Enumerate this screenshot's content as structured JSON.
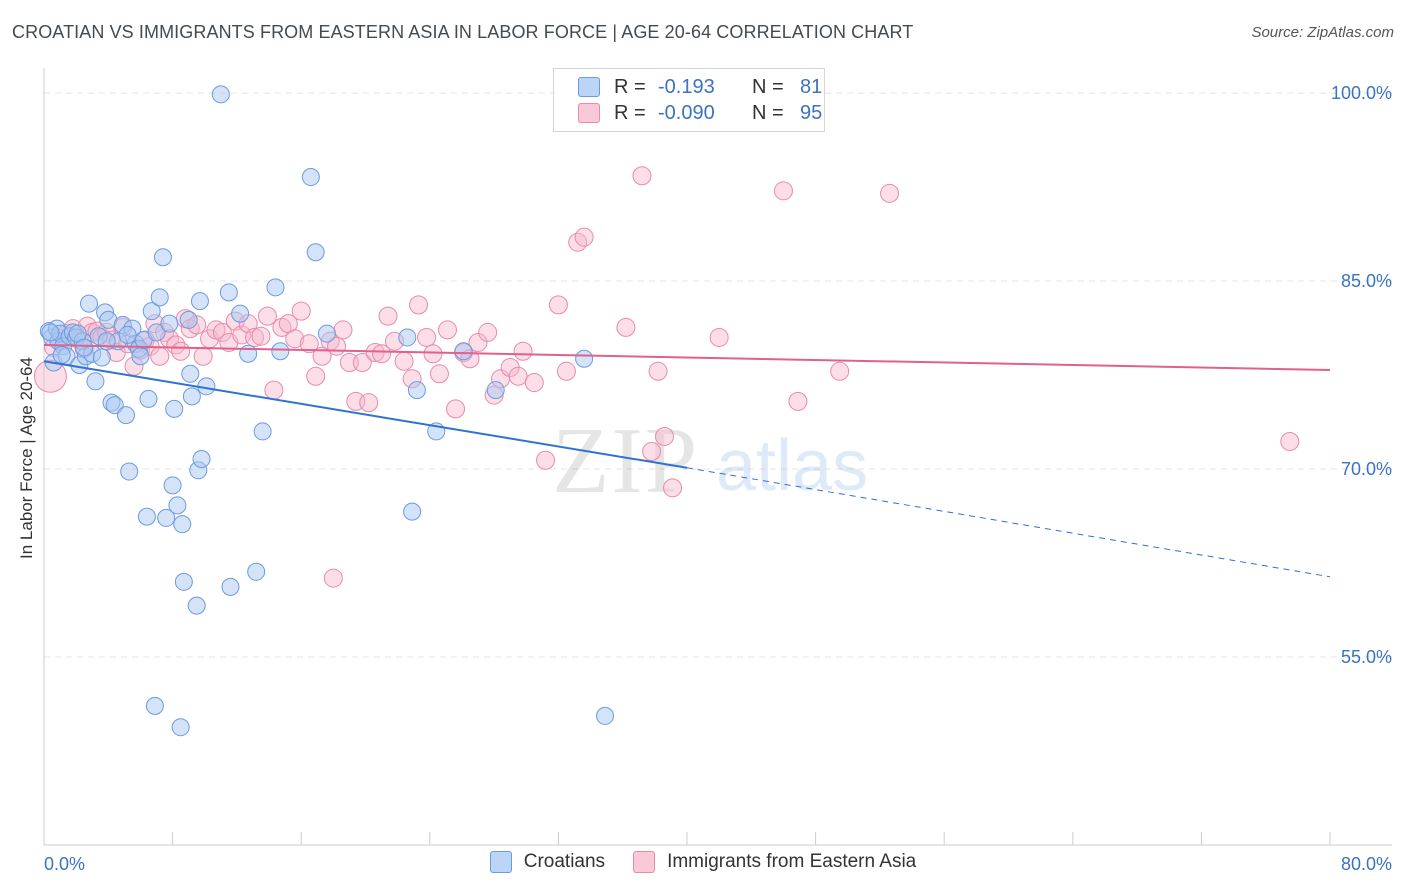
{
  "title": "CROATIAN VS IMMIGRANTS FROM EASTERN ASIA IN LABOR FORCE | AGE 20-64 CORRELATION CHART",
  "source": "Source: ZipAtlas.com",
  "watermark": {
    "zip": "ZIP",
    "atlas": "atlas"
  },
  "legend_top": {
    "rows": [
      {
        "r_label": "R =",
        "r_value": "-0.193",
        "n_label": "N =",
        "n_value": "81"
      },
      {
        "r_label": "R =",
        "r_value": "-0.090",
        "n_label": "N =",
        "n_value": "95"
      }
    ]
  },
  "legend_bottom": {
    "items": [
      "Croatians",
      "Immigrants from Eastern Asia"
    ]
  },
  "colors": {
    "blue_fill": "#a9c8f2",
    "blue_stroke": "#6b9be0",
    "blue_line": "#2f72d0",
    "pink_fill": "#f6b6cb",
    "pink_stroke": "#e98aaa",
    "pink_line": "#e0608e",
    "tick_text": "#3a72c4",
    "grid": "#e3e3e3"
  },
  "chart_data": {
    "type": "scatter",
    "xlabel": "",
    "ylabel": "In Labor Force | Age 20-64",
    "xlim": [
      0,
      80
    ],
    "ylim": [
      40,
      102
    ],
    "x_tick_labels": [
      "0.0%",
      "80.0%"
    ],
    "y_ticks": [
      55,
      70,
      85,
      100
    ],
    "y_tick_labels": [
      "55.0%",
      "70.0%",
      "85.0%",
      "100.0%"
    ],
    "grid": true,
    "series": [
      {
        "name": "Croatians",
        "r": -0.193,
        "n": 81,
        "trend": {
          "x0": 0,
          "y0": 78.6,
          "x1": 40,
          "y1": 70.1,
          "x_dashed_end": 80,
          "y_dashed_end": 61.4
        },
        "points": [
          [
            0.3,
            81.0
          ],
          [
            0.5,
            80.5
          ],
          [
            0.6,
            78.5
          ],
          [
            0.8,
            81.2
          ],
          [
            0.9,
            80.2
          ],
          [
            1.0,
            80.8
          ],
          [
            1.2,
            79.8
          ],
          [
            1.4,
            79.0
          ],
          [
            1.6,
            80.6
          ],
          [
            1.8,
            80.9
          ],
          [
            2.0,
            80.5
          ],
          [
            2.2,
            78.3
          ],
          [
            2.4,
            80.2
          ],
          [
            2.6,
            79.0
          ],
          [
            2.8,
            83.2
          ],
          [
            3.0,
            79.2
          ],
          [
            3.2,
            77.0
          ],
          [
            3.4,
            80.6
          ],
          [
            3.6,
            78.9
          ],
          [
            3.8,
            82.5
          ],
          [
            4.0,
            81.9
          ],
          [
            4.2,
            75.3
          ],
          [
            4.4,
            75.1
          ],
          [
            4.6,
            80.2
          ],
          [
            4.9,
            81.5
          ],
          [
            5.1,
            74.3
          ],
          [
            5.3,
            69.8
          ],
          [
            5.5,
            81.2
          ],
          [
            5.7,
            80.0
          ],
          [
            5.9,
            79.6
          ],
          [
            6.0,
            79.0
          ],
          [
            6.2,
            80.3
          ],
          [
            6.4,
            66.2
          ],
          [
            6.5,
            75.6
          ],
          [
            6.7,
            82.6
          ],
          [
            6.9,
            51.1
          ],
          [
            7.0,
            80.9
          ],
          [
            7.2,
            83.7
          ],
          [
            7.4,
            86.9
          ],
          [
            7.6,
            66.1
          ],
          [
            7.8,
            81.6
          ],
          [
            8.0,
            68.7
          ],
          [
            8.1,
            74.8
          ],
          [
            8.3,
            67.1
          ],
          [
            8.5,
            49.4
          ],
          [
            8.6,
            65.6
          ],
          [
            8.7,
            61.0
          ],
          [
            9.0,
            81.9
          ],
          [
            9.1,
            77.6
          ],
          [
            9.2,
            75.8
          ],
          [
            9.5,
            59.1
          ],
          [
            9.6,
            69.9
          ],
          [
            9.7,
            83.4
          ],
          [
            9.8,
            70.8
          ],
          [
            10.1,
            76.6
          ],
          [
            11.0,
            99.9
          ],
          [
            11.5,
            84.1
          ],
          [
            11.6,
            60.6
          ],
          [
            12.2,
            82.4
          ],
          [
            12.7,
            79.2
          ],
          [
            13.2,
            61.8
          ],
          [
            13.6,
            73.0
          ],
          [
            14.4,
            84.5
          ],
          [
            14.7,
            79.4
          ],
          [
            16.6,
            93.3
          ],
          [
            16.9,
            87.3
          ],
          [
            17.6,
            80.8
          ],
          [
            22.6,
            80.5
          ],
          [
            22.9,
            66.6
          ],
          [
            23.2,
            76.3
          ],
          [
            24.4,
            73.0
          ],
          [
            26.1,
            79.4
          ],
          [
            28.1,
            76.3
          ],
          [
            33.6,
            78.8
          ],
          [
            34.9,
            50.3
          ],
          [
            1.1,
            79.1
          ],
          [
            2.1,
            80.8
          ],
          [
            3.9,
            80.2
          ],
          [
            5.2,
            80.7
          ],
          [
            2.5,
            79.7
          ],
          [
            0.4,
            80.9
          ]
        ]
      },
      {
        "name": "Immigrants from Eastern Asia",
        "r": -0.09,
        "n": 95,
        "trend": {
          "x0": 0,
          "y0": 79.9,
          "x1": 80,
          "y1": 77.9
        },
        "points": [
          [
            0.4,
            77.4
          ],
          [
            0.6,
            79.7
          ],
          [
            1.0,
            80.4
          ],
          [
            1.4,
            80.8
          ],
          [
            1.8,
            81.2
          ],
          [
            2.2,
            80.3
          ],
          [
            2.5,
            79.6
          ],
          [
            2.7,
            81.4
          ],
          [
            3.0,
            80.9
          ],
          [
            3.3,
            81.0
          ],
          [
            3.6,
            80.5
          ],
          [
            3.9,
            80.9
          ],
          [
            4.2,
            80.3
          ],
          [
            4.5,
            79.3
          ],
          [
            4.9,
            81.3
          ],
          [
            5.2,
            80.0
          ],
          [
            5.6,
            78.2
          ],
          [
            6.0,
            79.5
          ],
          [
            6.3,
            80.3
          ],
          [
            6.6,
            79.8
          ],
          [
            6.9,
            81.6
          ],
          [
            7.2,
            79.0
          ],
          [
            7.5,
            80.9
          ],
          [
            7.8,
            80.4
          ],
          [
            8.2,
            79.9
          ],
          [
            8.5,
            79.4
          ],
          [
            8.8,
            82.0
          ],
          [
            9.1,
            81.2
          ],
          [
            9.5,
            81.5
          ],
          [
            9.9,
            79.0
          ],
          [
            10.3,
            80.4
          ],
          [
            10.7,
            81.1
          ],
          [
            11.1,
            80.9
          ],
          [
            11.5,
            80.1
          ],
          [
            11.9,
            81.8
          ],
          [
            12.3,
            80.7
          ],
          [
            12.7,
            81.6
          ],
          [
            13.1,
            80.5
          ],
          [
            13.5,
            80.6
          ],
          [
            13.9,
            82.2
          ],
          [
            14.3,
            76.3
          ],
          [
            14.8,
            81.3
          ],
          [
            15.2,
            81.6
          ],
          [
            15.6,
            80.4
          ],
          [
            16.0,
            82.6
          ],
          [
            16.5,
            80.0
          ],
          [
            16.9,
            77.4
          ],
          [
            17.3,
            79.0
          ],
          [
            17.8,
            80.2
          ],
          [
            18.2,
            79.8
          ],
          [
            18.6,
            81.1
          ],
          [
            19.0,
            78.5
          ],
          [
            19.4,
            75.4
          ],
          [
            19.8,
            78.5
          ],
          [
            20.2,
            75.3
          ],
          [
            20.6,
            79.3
          ],
          [
            21.0,
            79.2
          ],
          [
            21.4,
            82.2
          ],
          [
            21.8,
            80.2
          ],
          [
            22.4,
            78.6
          ],
          [
            22.9,
            77.2
          ],
          [
            23.3,
            83.1
          ],
          [
            23.8,
            80.5
          ],
          [
            24.2,
            79.2
          ],
          [
            24.6,
            77.6
          ],
          [
            25.1,
            81.1
          ],
          [
            25.6,
            74.8
          ],
          [
            26.1,
            79.3
          ],
          [
            26.5,
            78.8
          ],
          [
            27.0,
            80.1
          ],
          [
            27.6,
            80.9
          ],
          [
            28.0,
            75.9
          ],
          [
            28.4,
            77.2
          ],
          [
            29.0,
            78.1
          ],
          [
            29.5,
            77.4
          ],
          [
            29.8,
            79.4
          ],
          [
            30.5,
            76.9
          ],
          [
            31.2,
            70.7
          ],
          [
            32.0,
            83.1
          ],
          [
            32.5,
            77.8
          ],
          [
            33.2,
            88.1
          ],
          [
            33.6,
            88.5
          ],
          [
            36.2,
            81.3
          ],
          [
            37.2,
            93.4
          ],
          [
            37.8,
            71.4
          ],
          [
            38.2,
            77.8
          ],
          [
            38.6,
            72.6
          ],
          [
            39.1,
            68.5
          ],
          [
            42.0,
            80.5
          ],
          [
            46.0,
            92.2
          ],
          [
            46.9,
            75.4
          ],
          [
            49.5,
            77.8
          ],
          [
            52.6,
            92.0
          ],
          [
            77.5,
            72.2
          ],
          [
            18.0,
            61.3
          ]
        ]
      }
    ]
  }
}
